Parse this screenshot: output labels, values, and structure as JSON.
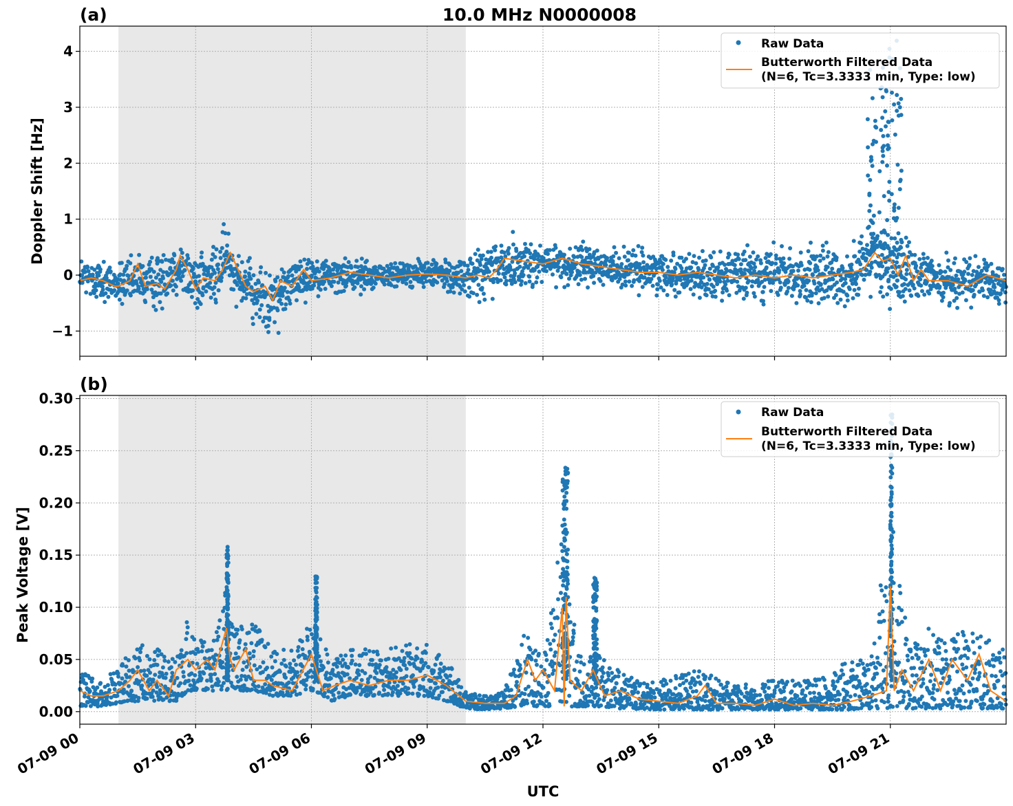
{
  "chart_data": [
    {
      "type": "scatter",
      "panel_label": "(a)",
      "title": "10.0 MHz N0000008",
      "xlabel": "",
      "ylabel": "Doppler Shift [Hz]",
      "ylim": [
        -1.45,
        4.45
      ],
      "yticks": [
        -1,
        0,
        1,
        2,
        3,
        4
      ],
      "ytick_labels": [
        "−1",
        "0",
        "1",
        "2",
        "3",
        "4"
      ],
      "xlim_hours": [
        0,
        24
      ],
      "shaded_span_hours": [
        1.0,
        10.0
      ],
      "grid": true,
      "legend": {
        "placement": "top-right",
        "raw_label": "Raw Data",
        "filtered_label_line1": "Butterworth Filtered Data",
        "filtered_label_line2": "(N=6, Tc=3.3333 min, Type: low)"
      },
      "series": [
        {
          "name": "Raw Data",
          "kind": "points",
          "color": "#1f77b4",
          "envelope": [
            [
              0,
              -0.02,
              0.3
            ],
            [
              0.5,
              -0.1,
              0.3
            ],
            [
              1,
              -0.15,
              0.3
            ],
            [
              1.5,
              -0.1,
              0.35
            ],
            [
              2,
              -0.15,
              0.4
            ],
            [
              2.5,
              0.15,
              0.4
            ],
            [
              3,
              -0.1,
              0.45
            ],
            [
              3.5,
              -0.05,
              0.5
            ],
            [
              3.8,
              0.35,
              0.45
            ],
            [
              4,
              0.1,
              0.4
            ],
            [
              4.5,
              -0.35,
              0.45
            ],
            [
              5,
              -0.5,
              0.5
            ],
            [
              5.5,
              -0.15,
              0.35
            ],
            [
              6,
              0,
              0.3
            ],
            [
              7,
              0,
              0.25
            ],
            [
              8,
              0,
              0.2
            ],
            [
              9,
              0.02,
              0.2
            ],
            [
              10,
              -0.03,
              0.3
            ],
            [
              10.5,
              0,
              0.45
            ],
            [
              11,
              0.2,
              0.45
            ],
            [
              12,
              0.2,
              0.3
            ],
            [
              13,
              0.2,
              0.3
            ],
            [
              14,
              0.1,
              0.3
            ],
            [
              15,
              0.05,
              0.3
            ],
            [
              16,
              0,
              0.35
            ],
            [
              17,
              0,
              0.35
            ],
            [
              18,
              0,
              0.4
            ],
            [
              19,
              -0.05,
              0.45
            ],
            [
              20,
              0,
              0.45
            ],
            [
              20.6,
              0.3,
              0.6
            ],
            [
              21,
              0.1,
              0.55
            ],
            [
              21.5,
              0.05,
              0.45
            ],
            [
              22,
              -0.05,
              0.35
            ],
            [
              23,
              -0.1,
              0.35
            ],
            [
              24,
              -0.15,
              0.3
            ]
          ],
          "bursts": [
            [
              20.4,
              21.3,
              4.2
            ]
          ]
        },
        {
          "name": "Butterworth Filtered Data",
          "kind": "line",
          "color": "#ff7f0e",
          "x": [
            0,
            0.3,
            0.6,
            0.9,
            1.0,
            1.3,
            1.5,
            1.7,
            2.0,
            2.2,
            2.5,
            2.6,
            2.8,
            3.0,
            3.2,
            3.5,
            3.7,
            3.9,
            4.1,
            4.3,
            4.5,
            4.8,
            5.0,
            5.2,
            5.5,
            5.8,
            6.0,
            6.5,
            7,
            7.5,
            8,
            8.5,
            9,
            9.5,
            10,
            10.3,
            10.6,
            10.8,
            11,
            11.5,
            12,
            12.5,
            13,
            13.5,
            14,
            14.5,
            15,
            15.5,
            16,
            16.5,
            17,
            17.5,
            18,
            18.5,
            19,
            19.5,
            20,
            20.3,
            20.6,
            20.8,
            21,
            21.2,
            21.4,
            21.6,
            21.8,
            22,
            22.5,
            23,
            23.5,
            24
          ],
          "y": [
            -0.1,
            -0.05,
            -0.1,
            -0.2,
            -0.2,
            -0.1,
            0.2,
            -0.2,
            -0.15,
            -0.25,
            0.1,
            0.35,
            0.1,
            -0.25,
            -0.05,
            -0.1,
            0.1,
            0.4,
            0.1,
            -0.2,
            -0.3,
            -0.2,
            -0.45,
            -0.1,
            -0.2,
            0.1,
            -0.1,
            -0.05,
            0.05,
            0.0,
            -0.05,
            0.0,
            0.02,
            0.0,
            -0.05,
            0.0,
            -0.05,
            0.1,
            0.3,
            0.25,
            0.2,
            0.3,
            0.2,
            0.15,
            0.1,
            0.05,
            0.05,
            0.0,
            0.05,
            0.0,
            -0.05,
            0.0,
            -0.05,
            0.0,
            -0.05,
            0.0,
            0.05,
            0.1,
            0.4,
            0.25,
            0.3,
            0.0,
            0.35,
            -0.1,
            0.1,
            -0.1,
            -0.1,
            -0.2,
            0.0,
            -0.1
          ]
        }
      ]
    },
    {
      "type": "scatter",
      "panel_label": "(b)",
      "title": "",
      "xlabel": "UTC",
      "ylabel": "Peak Voltage [V]",
      "ylim": [
        -0.012,
        0.303
      ],
      "yticks": [
        0.0,
        0.05,
        0.1,
        0.15,
        0.2,
        0.25,
        0.3
      ],
      "ytick_labels": [
        "0.00",
        "0.05",
        "0.10",
        "0.15",
        "0.20",
        "0.25",
        "0.30"
      ],
      "xlim_hours": [
        0,
        24
      ],
      "xticks_hours": [
        0,
        3,
        6,
        9,
        12,
        15,
        18,
        21
      ],
      "xtick_labels": [
        "07-09 00",
        "07-09 03",
        "07-09 06",
        "07-09 09",
        "07-09 12",
        "07-09 15",
        "07-09 18",
        "07-09 21"
      ],
      "shaded_span_hours": [
        1.0,
        10.0
      ],
      "grid": true,
      "legend": {
        "placement": "top-right",
        "raw_label": "Raw Data",
        "filtered_label_line1": "Butterworth Filtered Data",
        "filtered_label_line2": "(N=6, Tc=3.3333 min, Type: low)"
      },
      "series": [
        {
          "name": "Raw Data",
          "kind": "points",
          "color": "#1f77b4",
          "envelope": [
            [
              0,
              0.005,
              0.04
            ],
            [
              0.5,
              0.005,
              0.03
            ],
            [
              1,
              0.008,
              0.04
            ],
            [
              1.5,
              0.01,
              0.07
            ],
            [
              2,
              0.01,
              0.06
            ],
            [
              2.5,
              0.01,
              0.05
            ],
            [
              2.8,
              0.02,
              0.09
            ],
            [
              3,
              0.02,
              0.07
            ],
            [
              3.5,
              0.02,
              0.07
            ],
            [
              3.8,
              0.02,
              0.12
            ],
            [
              4,
              0.02,
              0.08
            ],
            [
              4.5,
              0.02,
              0.09
            ],
            [
              5,
              0.015,
              0.06
            ],
            [
              5.5,
              0.015,
              0.06
            ],
            [
              6,
              0.02,
              0.09
            ],
            [
              6.5,
              0.01,
              0.05
            ],
            [
              7,
              0.015,
              0.06
            ],
            [
              8,
              0.015,
              0.06
            ],
            [
              9,
              0.015,
              0.07
            ],
            [
              9.5,
              0.01,
              0.05
            ],
            [
              10,
              0.003,
              0.02
            ],
            [
              10.5,
              0.002,
              0.015
            ],
            [
              11,
              0.003,
              0.02
            ],
            [
              11.5,
              0.005,
              0.08
            ],
            [
              12,
              0.005,
              0.05
            ],
            [
              12.5,
              0.005,
              0.18
            ],
            [
              13,
              0.005,
              0.05
            ],
            [
              13.5,
              0.005,
              0.06
            ],
            [
              14,
              0.003,
              0.04
            ],
            [
              15,
              0.002,
              0.03
            ],
            [
              16,
              0.002,
              0.04
            ],
            [
              17,
              0.002,
              0.025
            ],
            [
              18,
              0.002,
              0.03
            ],
            [
              19,
              0.002,
              0.03
            ],
            [
              20,
              0.002,
              0.05
            ],
            [
              20.5,
              0.003,
              0.05
            ],
            [
              21,
              0.003,
              0.2
            ],
            [
              21.5,
              0.003,
              0.06
            ],
            [
              22,
              0.003,
              0.08
            ],
            [
              22.5,
              0.003,
              0.07
            ],
            [
              23,
              0.003,
              0.08
            ],
            [
              23.5,
              0.003,
              0.07
            ],
            [
              24,
              0.003,
              0.06
            ]
          ],
          "bursts": [
            [
              12.5,
              12.65,
              0.235
            ],
            [
              21.0,
              21.05,
              0.285
            ],
            [
              13.3,
              13.4,
              0.13
            ],
            [
              3.8,
              3.85,
              0.158
            ],
            [
              6.1,
              6.15,
              0.13
            ]
          ]
        },
        {
          "name": "Butterworth Filtered Data",
          "kind": "line",
          "color": "#ff7f0e",
          "x": [
            0,
            0.3,
            0.6,
            1.0,
            1.3,
            1.5,
            1.8,
            2.0,
            2.3,
            2.5,
            2.8,
            3.0,
            3.3,
            3.5,
            3.8,
            3.9,
            4.0,
            4.3,
            4.5,
            4.8,
            5.0,
            5.5,
            6.0,
            6.3,
            6.6,
            7,
            7.5,
            8,
            8.5,
            9,
            9.5,
            10,
            10.5,
            11,
            11.3,
            11.6,
            11.8,
            12,
            12.3,
            12.5,
            12.55,
            12.6,
            12.7,
            13,
            13.3,
            13.6,
            14,
            14.5,
            15,
            15.5,
            16,
            16.2,
            16.5,
            17,
            17.5,
            18,
            18.5,
            19,
            19.5,
            20,
            20.5,
            20.9,
            21.0,
            21.1,
            21.3,
            21.6,
            22,
            22.3,
            22.6,
            23,
            23.3,
            23.6,
            24
          ],
          "y": [
            0.02,
            0.015,
            0.015,
            0.02,
            0.03,
            0.04,
            0.02,
            0.03,
            0.015,
            0.04,
            0.05,
            0.04,
            0.05,
            0.04,
            0.08,
            0.05,
            0.04,
            0.06,
            0.03,
            0.03,
            0.025,
            0.02,
            0.055,
            0.02,
            0.025,
            0.03,
            0.025,
            0.03,
            0.03,
            0.035,
            0.025,
            0.01,
            0.008,
            0.008,
            0.015,
            0.05,
            0.03,
            0.04,
            0.02,
            0.1,
            0.005,
            0.11,
            0.03,
            0.02,
            0.04,
            0.015,
            0.02,
            0.012,
            0.01,
            0.008,
            0.015,
            0.025,
            0.008,
            0.008,
            0.006,
            0.012,
            0.006,
            0.008,
            0.006,
            0.01,
            0.015,
            0.02,
            0.12,
            0.02,
            0.04,
            0.02,
            0.05,
            0.02,
            0.05,
            0.03,
            0.055,
            0.02,
            0.01
          ]
        }
      ]
    }
  ]
}
